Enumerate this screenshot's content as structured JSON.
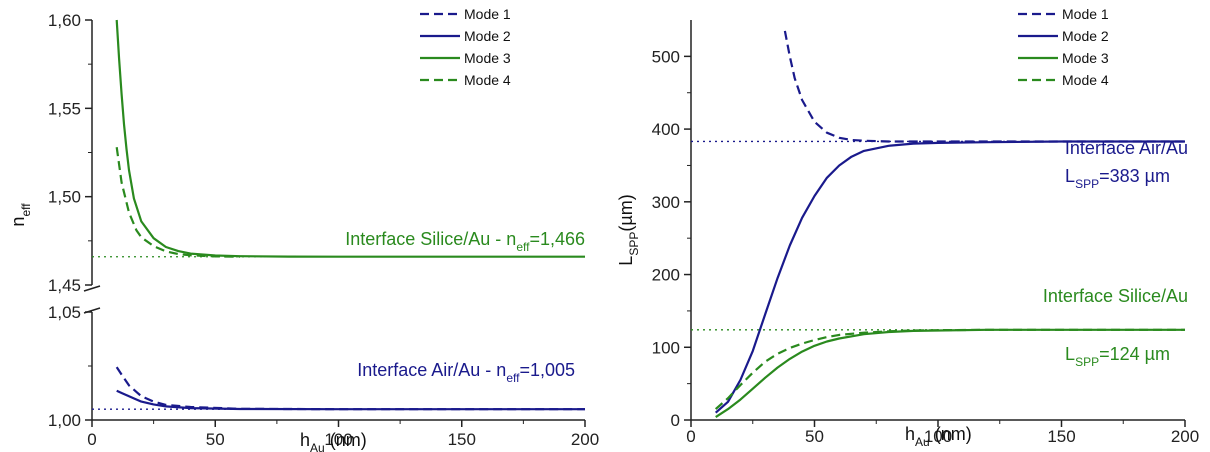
{
  "colors": {
    "blue": "#1a1a8c",
    "green": "#2a8a1e",
    "axis": "#222222"
  },
  "legend": [
    "Mode 1",
    "Mode 2",
    "Mode 3",
    "Mode 4"
  ],
  "chart_data": [
    {
      "type": "line",
      "panel": "left",
      "axis_break": true,
      "xlabel": "h",
      "xlabel_sub": "Au",
      "xlabel_unit": " (nm)",
      "ylabel": "n",
      "ylabel_sub": "eff",
      "xlim": [
        0,
        200
      ],
      "ylim_upper": [
        1.45,
        1.6
      ],
      "ylim_lower": [
        1.0,
        1.05
      ],
      "x_ticks": [
        0,
        50,
        100,
        150,
        200
      ],
      "y_ticks_upper": [
        1.45,
        1.5,
        1.55,
        1.6
      ],
      "y_ticks_lower": [
        1.0,
        1.05
      ],
      "y_tick_labels_upper": [
        "1,45",
        "1,50",
        "1,55",
        "1,60"
      ],
      "y_tick_labels_lower": [
        "1,00",
        "1,05"
      ],
      "reference_lines": [
        {
          "y": 1.466,
          "color": "green",
          "style": "dotted"
        },
        {
          "y": 1.005,
          "color": "blue",
          "style": "dotted"
        }
      ],
      "annotations": [
        {
          "color": "green",
          "parts": [
            "Interface Silice/Au - n",
            "eff",
            "=1,466"
          ]
        },
        {
          "color": "blue",
          "parts": [
            "Interface Air/Au - n",
            "eff",
            "=1,005"
          ]
        }
      ],
      "series": [
        {
          "name": "Mode 1",
          "color": "blue",
          "style": "dashed",
          "x": [
            10,
            12,
            15,
            18,
            20,
            25,
            30,
            40,
            60,
            100,
            200
          ],
          "y": [
            1.0245,
            1.021,
            1.016,
            1.013,
            1.011,
            1.0085,
            1.007,
            1.006,
            1.0052,
            1.005,
            1.005
          ]
        },
        {
          "name": "Mode 2",
          "color": "blue",
          "style": "solid",
          "x": [
            10,
            12,
            15,
            18,
            20,
            25,
            30,
            40,
            60,
            100,
            200
          ],
          "y": [
            1.0135,
            1.0125,
            1.011,
            1.0095,
            1.0085,
            1.0072,
            1.0063,
            1.0055,
            1.0051,
            1.005,
            1.005
          ]
        },
        {
          "name": "Mode 3",
          "color": "green",
          "style": "solid",
          "x": [
            10,
            11,
            12,
            13,
            14,
            15,
            17,
            20,
            25,
            30,
            35,
            40,
            50,
            60,
            80,
            100,
            200
          ],
          "y": [
            1.6,
            1.578,
            1.558,
            1.541,
            1.527,
            1.515,
            1.499,
            1.486,
            1.4765,
            1.4715,
            1.4692,
            1.4678,
            1.4667,
            1.4663,
            1.4661,
            1.466,
            1.466
          ]
        },
        {
          "name": "Mode 4",
          "color": "green",
          "style": "dashed",
          "x": [
            10,
            12,
            15,
            18,
            20,
            25,
            30,
            35,
            40,
            50,
            60
          ],
          "y": [
            1.528,
            1.508,
            1.491,
            1.481,
            1.477,
            1.472,
            1.469,
            1.4675,
            1.4668,
            1.4662,
            1.466
          ]
        }
      ]
    },
    {
      "type": "line",
      "panel": "right",
      "xlabel": "h",
      "xlabel_sub": "Au",
      "xlabel_unit": " (nm)",
      "ylabel": "L",
      "ylabel_sub": "SPP",
      "ylabel_unit": "(µm)",
      "xlim": [
        0,
        200
      ],
      "ylim": [
        0,
        550
      ],
      "x_ticks": [
        0,
        50,
        100,
        150,
        200
      ],
      "y_ticks": [
        0,
        100,
        200,
        300,
        400,
        500
      ],
      "reference_lines": [
        {
          "y": 383,
          "color": "blue",
          "style": "dotted"
        },
        {
          "y": 124,
          "color": "green",
          "style": "dotted"
        }
      ],
      "annotations": [
        {
          "color": "blue",
          "parts": [
            "Interface Air/Au"
          ]
        },
        {
          "color": "blue",
          "parts": [
            "L",
            "SPP",
            "=383 µm"
          ]
        },
        {
          "color": "green",
          "parts": [
            "Interface Silice/Au"
          ]
        },
        {
          "color": "green",
          "parts": [
            "L",
            "SPP",
            "=124 µm"
          ]
        }
      ],
      "series": [
        {
          "name": "Mode 1",
          "color": "blue",
          "style": "dashed",
          "x": [
            38,
            40,
            42,
            45,
            50,
            55,
            60,
            65,
            70,
            80,
            100,
            200
          ],
          "y": [
            535,
            500,
            470,
            440,
            410,
            395,
            388,
            385,
            384,
            383,
            383,
            383
          ]
        },
        {
          "name": "Mode 2",
          "color": "blue",
          "style": "solid",
          "x": [
            10,
            15,
            20,
            25,
            30,
            35,
            40,
            45,
            50,
            55,
            60,
            65,
            70,
            80,
            90,
            100,
            120,
            150,
            200
          ],
          "y": [
            10,
            25,
            55,
            95,
            145,
            195,
            240,
            278,
            308,
            333,
            350,
            362,
            370,
            377,
            380,
            381,
            382,
            383,
            383
          ]
        },
        {
          "name": "Mode 3",
          "color": "green",
          "style": "solid",
          "x": [
            10,
            15,
            20,
            25,
            30,
            35,
            40,
            45,
            50,
            55,
            60,
            70,
            80,
            90,
            100,
            120,
            150,
            200
          ],
          "y": [
            4,
            15,
            28,
            43,
            58,
            72,
            84,
            94,
            102,
            108,
            112,
            118,
            121,
            122.5,
            123,
            124,
            124,
            124
          ]
        },
        {
          "name": "Mode 4",
          "color": "green",
          "style": "dashed",
          "x": [
            10,
            15,
            20,
            25,
            30,
            35,
            40,
            45,
            50,
            55,
            60,
            70,
            80,
            90,
            100,
            120,
            150,
            200
          ],
          "y": [
            15,
            30,
            48,
            65,
            80,
            91,
            99,
            105,
            110,
            114,
            117,
            120,
            122,
            123,
            123.5,
            124,
            124,
            124
          ]
        }
      ]
    }
  ]
}
